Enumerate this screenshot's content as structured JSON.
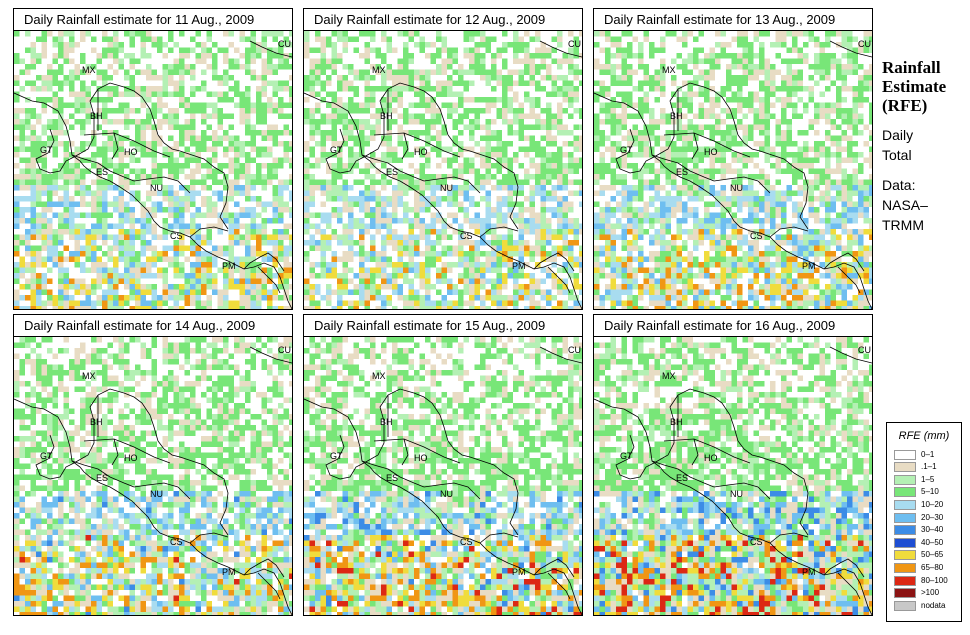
{
  "panels": [
    {
      "title": "Daily Rainfall estimate for  11 Aug., 2009",
      "intensity": 0.55,
      "seed": 11
    },
    {
      "title": "Daily Rainfall estimate for  12 Aug., 2009",
      "intensity": 0.45,
      "seed": 12
    },
    {
      "title": "Daily Rainfall estimate for  13 Aug., 2009",
      "intensity": 0.6,
      "seed": 13
    },
    {
      "title": "Daily Rainfall estimate for  14 Aug., 2009",
      "intensity": 0.7,
      "seed": 14
    },
    {
      "title": "Daily Rainfall estimate for  15 Aug., 2009",
      "intensity": 0.8,
      "seed": 15
    },
    {
      "title": "Daily Rainfall estimate for  16 Aug., 2009",
      "intensity": 0.95,
      "seed": 16
    }
  ],
  "map_labels": [
    "CU",
    "MX",
    "BH",
    "GT",
    "HO",
    "ES",
    "NU",
    "CS",
    "PM"
  ],
  "sidebar": {
    "title_line1": "Rainfall",
    "title_line2": "Estimate",
    "title_line3": "(RFE)",
    "daily_line1": "Daily",
    "daily_line2": "Total",
    "data_line1": "Data:",
    "data_line2": "NASA–",
    "data_line3": "TRMM"
  },
  "legend": {
    "title": "RFE (mm)",
    "items": [
      {
        "label": "0–1",
        "color": "#ffffff"
      },
      {
        "label": ".1–1",
        "color": "#e8dcc4"
      },
      {
        "label": "1–5",
        "color": "#b4f0b4"
      },
      {
        "label": "5–10",
        "color": "#78e678"
      },
      {
        "label": "10–20",
        "color": "#a8dcf0"
      },
      {
        "label": "20–30",
        "color": "#6ebef0"
      },
      {
        "label": "30–40",
        "color": "#3c8ce6"
      },
      {
        "label": "40–50",
        "color": "#1e4ed2"
      },
      {
        "label": "50–65",
        "color": "#f0dc3c"
      },
      {
        "label": "65–80",
        "color": "#f09614"
      },
      {
        "label": "80–100",
        "color": "#dc2814"
      },
      {
        "label": ">100",
        "color": "#8c1414"
      },
      {
        "label": "nodata",
        "color": "#c8c8c8"
      }
    ]
  }
}
